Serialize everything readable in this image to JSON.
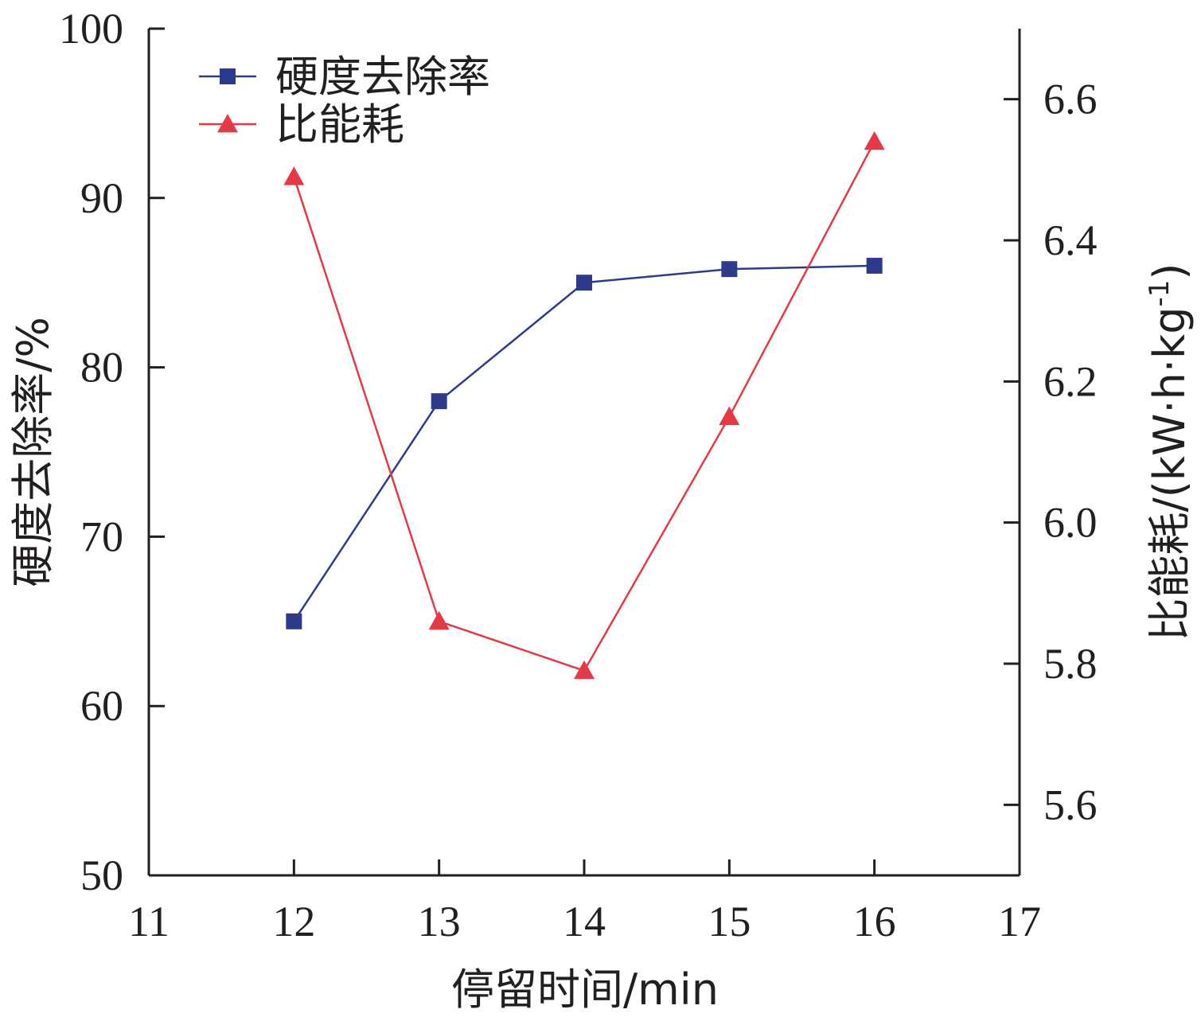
{
  "chart_data": {
    "type": "line",
    "x": [
      12,
      13,
      14,
      15,
      16
    ],
    "xlabel": "停留时间/min",
    "xlim": [
      11,
      17
    ],
    "xticks": [
      11,
      12,
      13,
      14,
      15,
      16,
      17
    ],
    "ylabel_left": "硬度去除率/%",
    "ylim_left": [
      50,
      100
    ],
    "yticks_left": [
      50,
      60,
      70,
      80,
      90,
      100
    ],
    "ylabel_right": {
      "main": "比能耗/(kW·h·kg",
      "sup": "-1",
      "close": ")"
    },
    "ylim_right": [
      5.5,
      6.7
    ],
    "yticks_right": [
      "5.6",
      "5.8",
      "6.0",
      "6.2",
      "6.4",
      "6.6"
    ],
    "legend_position": "top-left",
    "grid": false,
    "series": [
      {
        "name": "硬度去除率",
        "axis": "left",
        "marker": "square",
        "color": "#2e3a8c",
        "values": [
          65.0,
          78.0,
          85.0,
          85.8,
          86.0
        ]
      },
      {
        "name": "比能耗",
        "axis": "right",
        "marker": "triangle",
        "color": "#e63946",
        "values": [
          6.49,
          5.86,
          5.79,
          6.15,
          6.54
        ]
      }
    ]
  }
}
